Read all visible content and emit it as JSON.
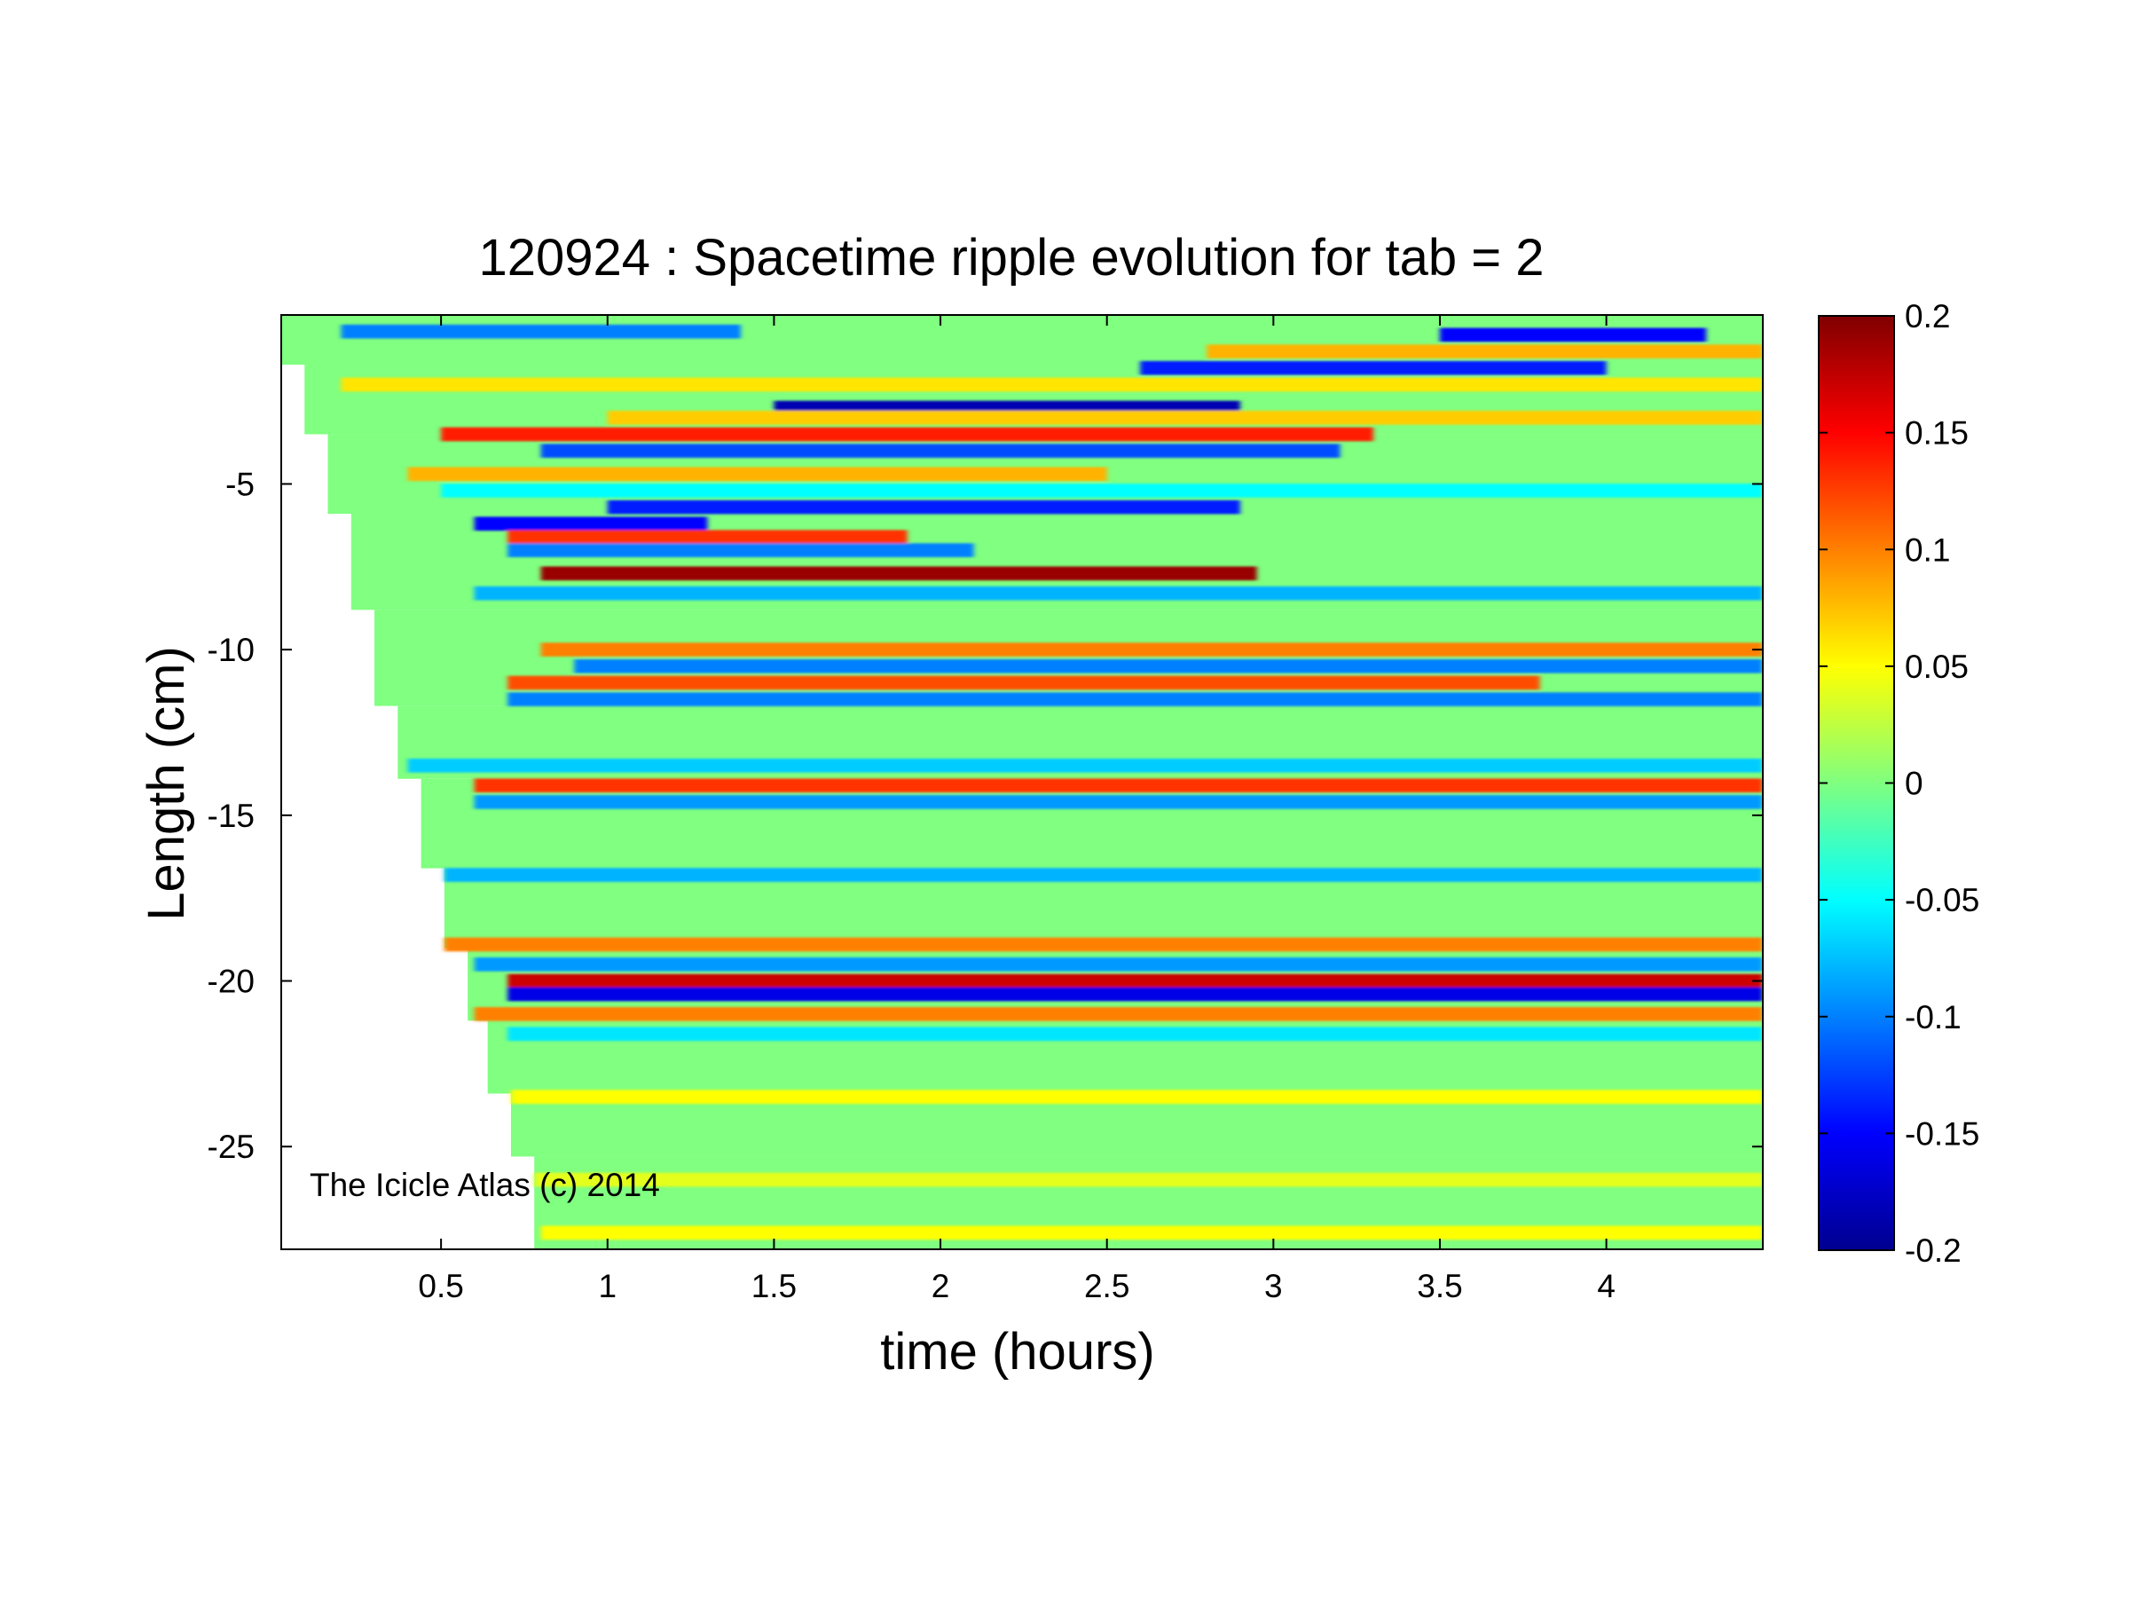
{
  "chart_data": {
    "type": "heatmap",
    "title": "120924 : Spacetime ripple evolution for tab = 2",
    "xlabel": "time (hours)",
    "ylabel": "Length (cm)",
    "xlim": [
      0.02,
      4.47
    ],
    "ylim": [
      -28.1,
      0.1
    ],
    "x_ticks": [
      0.5,
      1,
      1.5,
      2,
      2.5,
      3,
      3.5,
      4
    ],
    "x_tick_labels": [
      "0.5",
      "1",
      "1.5",
      "2",
      "2.5",
      "3",
      "3.5",
      "4"
    ],
    "y_ticks": [
      -5,
      -10,
      -15,
      -20,
      -25
    ],
    "y_tick_labels": [
      "-5",
      "-10",
      "-15",
      "-20",
      "-25"
    ],
    "colormap": "jet",
    "clim": [
      -0.2,
      0.2
    ],
    "colorbar_ticks": [
      0.2,
      0.15,
      0.1,
      0.05,
      0,
      -0.05,
      -0.1,
      -0.15,
      -0.2
    ],
    "colorbar_tick_labels": [
      "0.2",
      "0.15",
      "0.1",
      "0.05",
      "0",
      "-0.05",
      "-0.1",
      "-0.15",
      "-0.2"
    ],
    "annotation": "The Icicle Atlas (c) 2014",
    "grid": false,
    "data_boundary_left": [
      {
        "y_from": 0.1,
        "y_to": -1.4,
        "t_start": 0.02
      },
      {
        "y_from": -1.4,
        "y_to": -3.5,
        "t_start": 0.09
      },
      {
        "y_from": -3.5,
        "y_to": -5.9,
        "t_start": 0.16
      },
      {
        "y_from": -5.9,
        "y_to": -8.8,
        "t_start": 0.23
      },
      {
        "y_from": -8.8,
        "y_to": -11.7,
        "t_start": 0.3
      },
      {
        "y_from": -11.7,
        "y_to": -13.9,
        "t_start": 0.37
      },
      {
        "y_from": -13.9,
        "y_to": -16.6,
        "t_start": 0.44
      },
      {
        "y_from": -16.6,
        "y_to": -19.0,
        "t_start": 0.51
      },
      {
        "y_from": -19.0,
        "y_to": -21.2,
        "t_start": 0.58
      },
      {
        "y_from": -21.2,
        "y_to": -23.4,
        "t_start": 0.64
      },
      {
        "y_from": -23.4,
        "y_to": -25.3,
        "t_start": 0.71
      },
      {
        "y_from": -25.3,
        "y_to": -28.1,
        "t_start": 0.78
      }
    ],
    "bands": [
      {
        "y": -0.4,
        "value": -0.1,
        "t_from": 0.2,
        "t_to": 1.4
      },
      {
        "y": -0.5,
        "value": -0.15,
        "t_from": 3.5,
        "t_to": 4.3
      },
      {
        "y": -1.0,
        "value": 0.08,
        "t_from": 2.8,
        "t_to": 4.47
      },
      {
        "y": -1.5,
        "value": -0.14,
        "t_from": 2.6,
        "t_to": 4.0
      },
      {
        "y": -2.0,
        "value": 0.06,
        "t_from": 0.2,
        "t_to": 4.47
      },
      {
        "y": -2.7,
        "value": -0.18,
        "t_from": 1.5,
        "t_to": 2.9
      },
      {
        "y": -3.0,
        "value": 0.07,
        "t_from": 1.0,
        "t_to": 4.47
      },
      {
        "y": -3.5,
        "value": 0.14,
        "t_from": 0.5,
        "t_to": 3.3
      },
      {
        "y": -4.0,
        "value": -0.12,
        "t_from": 0.8,
        "t_to": 3.2
      },
      {
        "y": -4.7,
        "value": 0.08,
        "t_from": 0.4,
        "t_to": 2.5
      },
      {
        "y": -5.2,
        "value": -0.05,
        "t_from": 0.5,
        "t_to": 4.47
      },
      {
        "y": -5.7,
        "value": -0.14,
        "t_from": 1.0,
        "t_to": 2.9
      },
      {
        "y": -6.2,
        "value": -0.15,
        "t_from": 0.6,
        "t_to": 1.3
      },
      {
        "y": -6.6,
        "value": 0.13,
        "t_from": 0.7,
        "t_to": 1.9
      },
      {
        "y": -7.0,
        "value": -0.1,
        "t_from": 0.7,
        "t_to": 2.1
      },
      {
        "y": -7.7,
        "value": 0.19,
        "t_from": 0.8,
        "t_to": 2.95
      },
      {
        "y": -8.3,
        "value": -0.08,
        "t_from": 0.6,
        "t_to": 4.47
      },
      {
        "y": -10.0,
        "value": 0.1,
        "t_from": 0.8,
        "t_to": 4.47
      },
      {
        "y": -10.5,
        "value": -0.1,
        "t_from": 0.9,
        "t_to": 4.47
      },
      {
        "y": -11.0,
        "value": 0.12,
        "t_from": 0.7,
        "t_to": 3.8
      },
      {
        "y": -11.5,
        "value": -0.1,
        "t_from": 0.7,
        "t_to": 4.47
      },
      {
        "y": -13.5,
        "value": -0.07,
        "t_from": 0.4,
        "t_to": 4.47
      },
      {
        "y": -14.1,
        "value": 0.13,
        "t_from": 0.6,
        "t_to": 4.47
      },
      {
        "y": -14.6,
        "value": -0.09,
        "t_from": 0.6,
        "t_to": 4.47
      },
      {
        "y": -16.8,
        "value": -0.08,
        "t_from": 0.5,
        "t_to": 4.47
      },
      {
        "y": -18.9,
        "value": 0.1,
        "t_from": 0.5,
        "t_to": 4.47
      },
      {
        "y": -19.5,
        "value": -0.09,
        "t_from": 0.6,
        "t_to": 4.47
      },
      {
        "y": -20.0,
        "value": 0.17,
        "t_from": 0.7,
        "t_to": 4.47
      },
      {
        "y": -20.4,
        "value": -0.16,
        "t_from": 0.7,
        "t_to": 4.47
      },
      {
        "y": -21.0,
        "value": 0.1,
        "t_from": 0.6,
        "t_to": 4.47
      },
      {
        "y": -21.6,
        "value": -0.06,
        "t_from": 0.7,
        "t_to": 4.47
      },
      {
        "y": -23.5,
        "value": 0.05,
        "t_from": 0.7,
        "t_to": 4.47
      },
      {
        "y": -26.0,
        "value": 0.04,
        "t_from": 0.75,
        "t_to": 4.47
      },
      {
        "y": -27.6,
        "value": 0.05,
        "t_from": 0.8,
        "t_to": 4.47
      }
    ]
  }
}
